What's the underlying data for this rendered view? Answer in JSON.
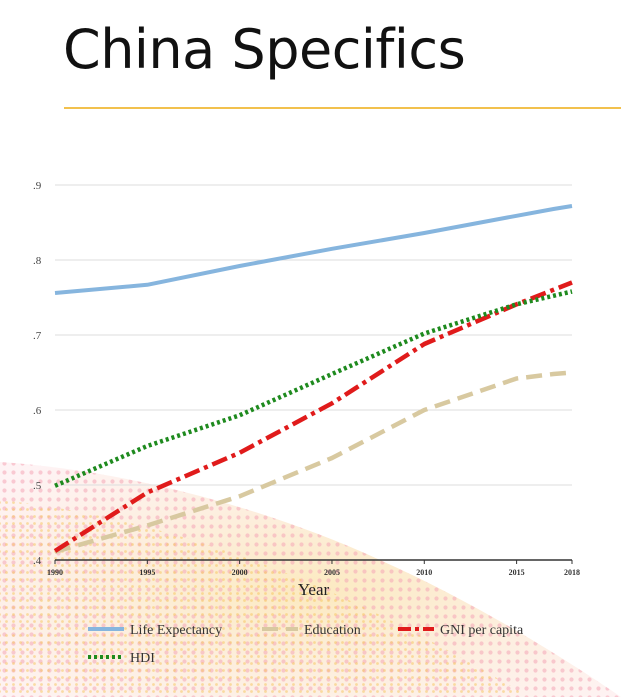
{
  "slide": {
    "title": "China Specifics",
    "accent_color": "#f2c14e"
  },
  "chart_data": {
    "type": "line",
    "xlabel": "Year",
    "ylabel": "",
    "x_ticks": [
      "1990",
      "1995",
      "2000",
      "2005",
      "2010",
      "2015",
      "2018"
    ],
    "y_ticks": [
      ".4",
      ".5",
      ".6",
      ".7",
      ".8",
      ".9"
    ],
    "xlim": [
      1990,
      2018
    ],
    "ylim": [
      0.4,
      0.9
    ],
    "grid": true,
    "legend_position": "bottom",
    "series": [
      {
        "name": "Life Expectancy",
        "color": "#86b5de",
        "style": "solid",
        "x": [
          1990,
          1995,
          2000,
          2005,
          2010,
          2015,
          2017,
          2018
        ],
        "y": [
          0.756,
          0.767,
          0.792,
          0.815,
          0.836,
          0.859,
          0.868,
          0.872
        ]
      },
      {
        "name": "Education",
        "color": "#d8c9a0",
        "style": "dashed",
        "x": [
          1990,
          1995,
          2000,
          2005,
          2010,
          2015,
          2017,
          2018
        ],
        "y": [
          0.411,
          0.446,
          0.485,
          0.536,
          0.6,
          0.642,
          0.648,
          0.65
        ]
      },
      {
        "name": "GNI per capita",
        "color": "#e01b1b",
        "style": "dashdot",
        "x": [
          1990,
          1995,
          2000,
          2005,
          2010,
          2015,
          2018
        ],
        "y": [
          0.412,
          0.49,
          0.543,
          0.609,
          0.688,
          0.741,
          0.77
        ]
      },
      {
        "name": "HDI",
        "color": "#1e8a1e",
        "style": "dotted",
        "x": [
          1990,
          1995,
          2000,
          2005,
          2010,
          2015,
          2018
        ],
        "y": [
          0.499,
          0.552,
          0.593,
          0.648,
          0.702,
          0.741,
          0.758
        ]
      }
    ]
  }
}
